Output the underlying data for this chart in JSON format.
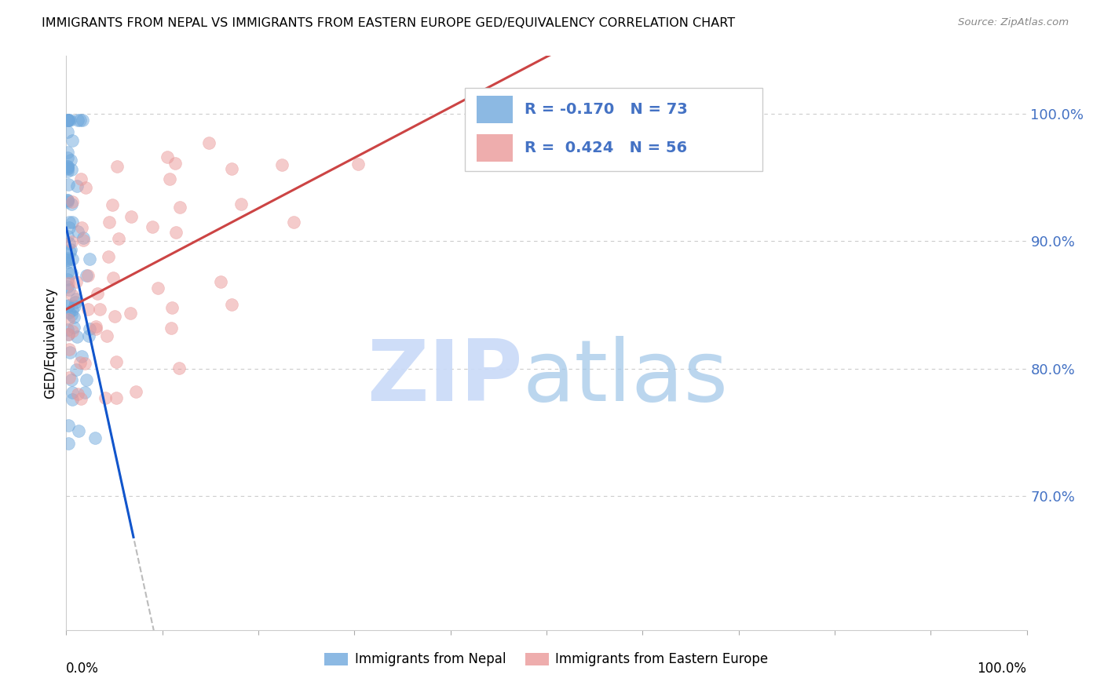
{
  "title": "IMMIGRANTS FROM NEPAL VS IMMIGRANTS FROM EASTERN EUROPE GED/EQUIVALENCY CORRELATION CHART",
  "source": "Source: ZipAtlas.com",
  "ylabel": "GED/Equivalency",
  "r_nepal": -0.17,
  "n_nepal": 73,
  "r_eastern": 0.424,
  "n_eastern": 56,
  "ytick_labels": [
    "70.0%",
    "80.0%",
    "90.0%",
    "100.0%"
  ],
  "ytick_values": [
    0.7,
    0.8,
    0.9,
    1.0
  ],
  "xlim": [
    0.0,
    1.0
  ],
  "ylim": [
    0.595,
    1.045
  ],
  "color_nepal": "#6fa8dc",
  "color_eastern": "#ea9999",
  "trendline_nepal_color": "#1155cc",
  "trendline_eastern_color": "#cc4444",
  "trendline_dashed_color": "#aaaaaa",
  "watermark_zip_color": "#c9daf8",
  "watermark_atlas_color": "#9fc5e8",
  "legend_border_color": "#cccccc",
  "legend_text_color": "#4472c4",
  "nepal_seed": 42,
  "eastern_seed": 99
}
